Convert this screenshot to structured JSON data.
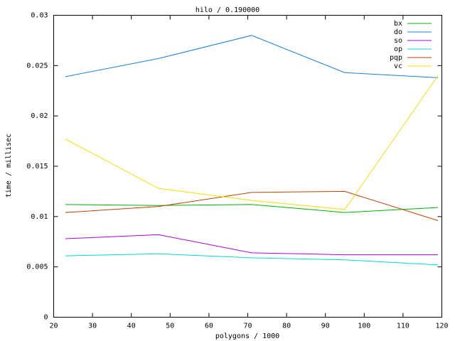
{
  "chart_data": {
    "type": "line",
    "title": "hilo / 0.190000",
    "x_label": "polygons / 1000",
    "y_label": "time / millisec",
    "x": [
      23,
      47,
      71,
      95,
      119
    ],
    "series": [
      {
        "name": "bx",
        "color": "#00b000",
        "values": [
          0.0112,
          0.0111,
          0.0112,
          0.0104,
          0.0109
        ]
      },
      {
        "name": "do",
        "color": "#1a7fe0",
        "values": [
          0.0239,
          0.0257,
          0.028,
          0.0243,
          0.0238
        ]
      },
      {
        "name": "so",
        "color": "#b000e0",
        "values": [
          0.0078,
          0.0082,
          0.0064,
          0.0062,
          0.0062
        ]
      },
      {
        "name": "op",
        "color": "#00d8d8",
        "values": [
          0.0061,
          0.0063,
          0.0059,
          0.0057,
          0.0052
        ]
      },
      {
        "name": "pqp",
        "color": "#c04000",
        "values": [
          0.0104,
          0.011,
          0.0124,
          0.0125,
          0.0096
        ]
      },
      {
        "name": "vc",
        "color": "#f0e000",
        "values": [
          0.0177,
          0.0128,
          0.0116,
          0.0107,
          0.024
        ]
      }
    ],
    "xlim": [
      20,
      120
    ],
    "xticks": [
      20,
      30,
      40,
      50,
      60,
      70,
      80,
      90,
      100,
      110,
      120
    ],
    "ylim": [
      0,
      0.03
    ],
    "yticks": [
      0,
      0.005,
      0.01,
      0.015,
      0.02,
      0.025,
      0.03
    ],
    "legend": "top-right"
  }
}
